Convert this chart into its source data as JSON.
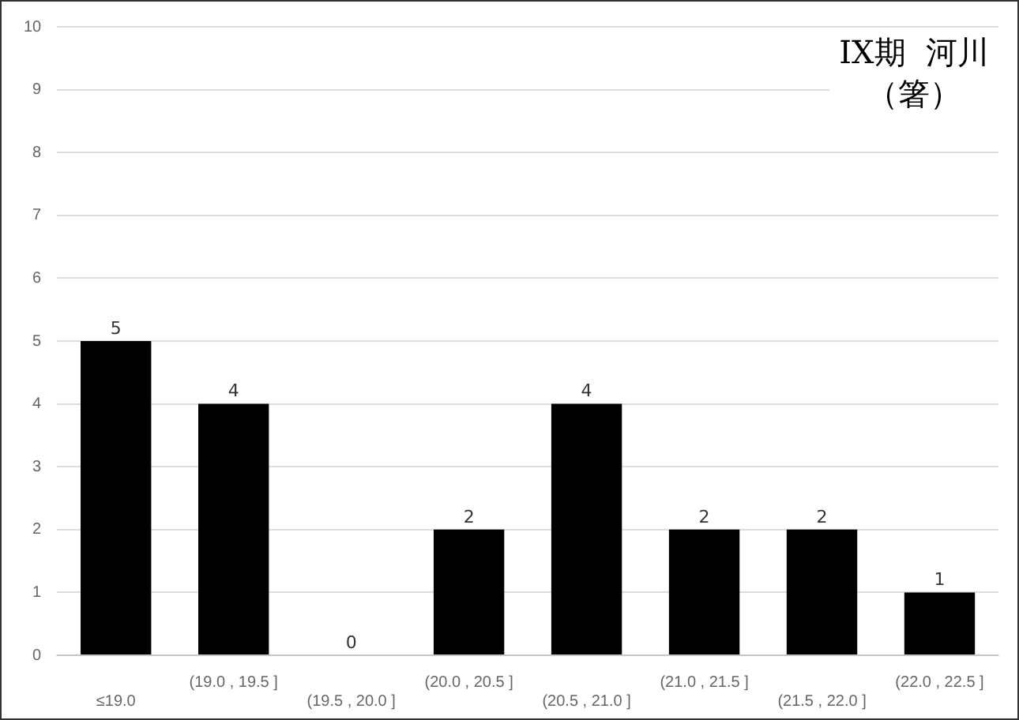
{
  "chart_data": {
    "type": "bar",
    "annotations": [
      "IX期  河川",
      "（箸）"
    ],
    "categories": [
      "≤19.0",
      "(19.0 , 19.5 ]",
      "(19.5 , 20.0 ]",
      "(20.0 , 20.5 ]",
      "(20.5 , 21.0 ]",
      "(21.0 , 21.5 ]",
      "(21.5 , 22.0 ]",
      "(22.0 , 22.5 ]"
    ],
    "values": [
      5,
      4,
      0,
      2,
      4,
      2,
      2,
      1
    ],
    "color": "#000000",
    "ylim": [
      0,
      10
    ],
    "yticks": [
      0,
      1,
      2,
      3,
      4,
      5,
      6,
      7,
      8,
      9,
      10
    ],
    "grid": "y",
    "data_labels": true
  }
}
